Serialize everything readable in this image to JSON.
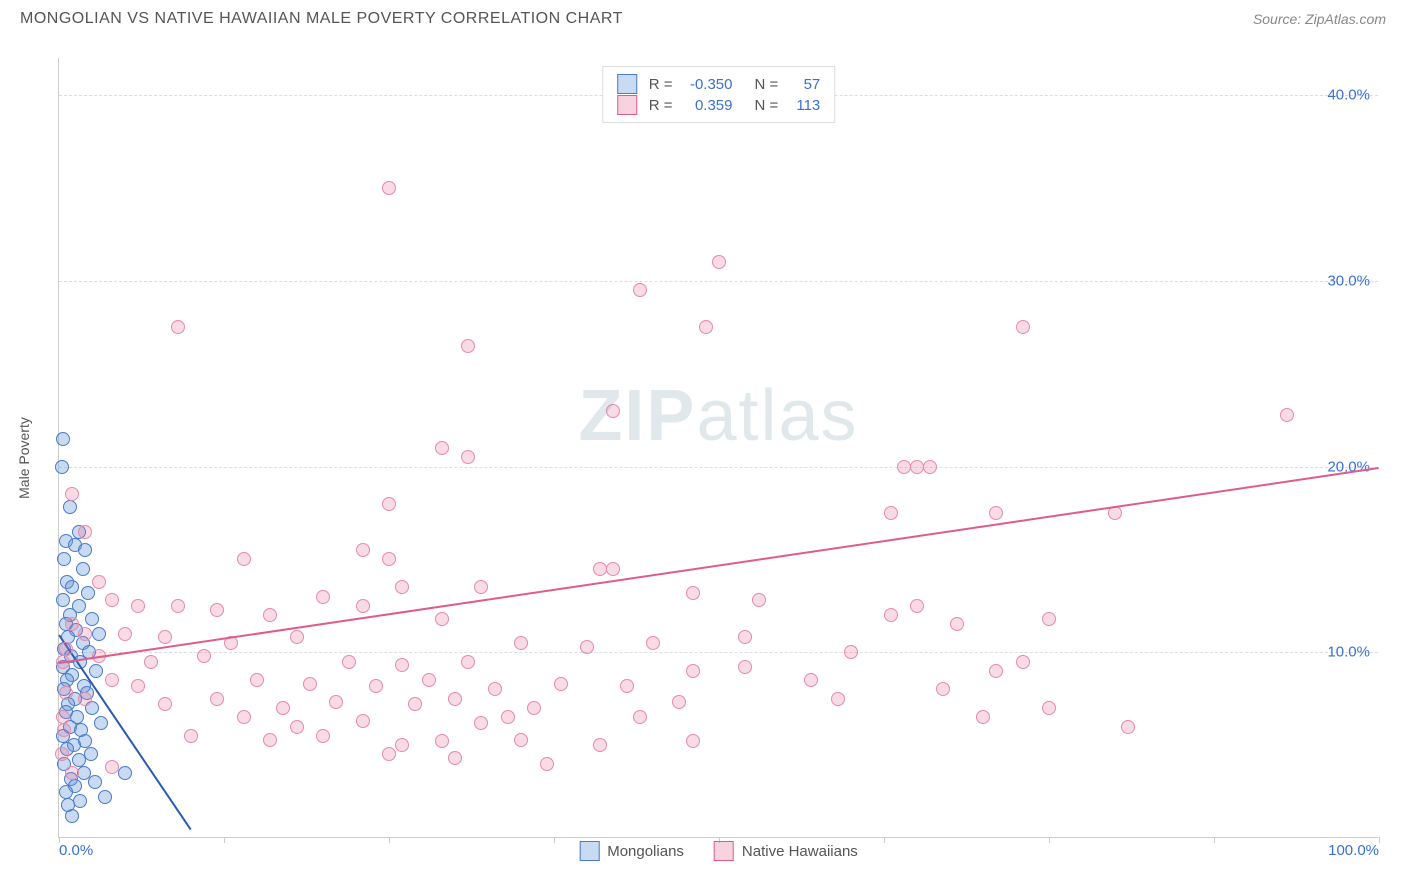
{
  "header": {
    "title": "MONGOLIAN VS NATIVE HAWAIIAN MALE POVERTY CORRELATION CHART",
    "source": "Source: ZipAtlas.com"
  },
  "y_axis_label": "Male Poverty",
  "watermark": "ZIPatlas",
  "legend_top": {
    "series1": {
      "r_label": "R =",
      "r_value": "-0.350",
      "n_label": "N =",
      "n_value": "57",
      "swatch_fill": "rgba(100,150,220,0.35)",
      "swatch_border": "#4a7bc8"
    },
    "series2": {
      "r_label": "R =",
      "r_value": "0.359",
      "n_label": "N =",
      "n_value": "113",
      "swatch_fill": "rgba(230,110,150,0.3)",
      "swatch_border": "#e05b8a"
    }
  },
  "legend_bottom": {
    "series1": {
      "label": "Mongolians",
      "swatch_fill": "rgba(100,150,220,0.35)",
      "swatch_border": "#4a7bc8"
    },
    "series2": {
      "label": "Native Hawaiians",
      "swatch_fill": "rgba(230,110,150,0.3)",
      "swatch_border": "#e05b8a"
    }
  },
  "chart": {
    "type": "scatter",
    "xlim": [
      0,
      100
    ],
    "ylim": [
      0,
      42
    ],
    "y_ticks": [
      10,
      20,
      30,
      40
    ],
    "y_tick_labels": [
      "10.0%",
      "20.0%",
      "30.0%",
      "40.0%"
    ],
    "x_ticks": [
      0,
      12.5,
      25,
      37.5,
      50,
      62.5,
      75,
      87.5,
      100
    ],
    "x_tick_labels_shown": {
      "0": "0.0%",
      "100": "100.0%"
    },
    "background_color": "#ffffff",
    "grid_color": "#dddddd",
    "point_radius": 7,
    "series": [
      {
        "name": "Mongolians",
        "fill": "rgba(100,150,220,0.35)",
        "stroke": "#4a7bc8",
        "trend": {
          "x1": 0,
          "y1": 11.0,
          "x2": 10,
          "y2": 0.5,
          "color": "#2a5bb0"
        },
        "points": [
          [
            0.3,
            21.5
          ],
          [
            0.2,
            20.0
          ],
          [
            0.8,
            17.8
          ],
          [
            1.5,
            16.5
          ],
          [
            0.5,
            16.0
          ],
          [
            1.2,
            15.8
          ],
          [
            2.0,
            15.5
          ],
          [
            0.4,
            15.0
          ],
          [
            1.8,
            14.5
          ],
          [
            0.6,
            13.8
          ],
          [
            1.0,
            13.5
          ],
          [
            2.2,
            13.2
          ],
          [
            0.3,
            12.8
          ],
          [
            1.5,
            12.5
          ],
          [
            0.8,
            12.0
          ],
          [
            2.5,
            11.8
          ],
          [
            0.5,
            11.5
          ],
          [
            1.3,
            11.2
          ],
          [
            3.0,
            11.0
          ],
          [
            0.7,
            10.8
          ],
          [
            1.8,
            10.5
          ],
          [
            0.4,
            10.2
          ],
          [
            2.3,
            10.0
          ],
          [
            0.9,
            9.8
          ],
          [
            1.6,
            9.5
          ],
          [
            0.3,
            9.2
          ],
          [
            2.8,
            9.0
          ],
          [
            1.0,
            8.8
          ],
          [
            0.6,
            8.5
          ],
          [
            1.9,
            8.2
          ],
          [
            0.4,
            8.0
          ],
          [
            2.1,
            7.8
          ],
          [
            1.2,
            7.5
          ],
          [
            0.7,
            7.2
          ],
          [
            2.5,
            7.0
          ],
          [
            0.5,
            6.8
          ],
          [
            1.4,
            6.5
          ],
          [
            3.2,
            6.2
          ],
          [
            0.8,
            6.0
          ],
          [
            1.7,
            5.8
          ],
          [
            0.3,
            5.5
          ],
          [
            2.0,
            5.2
          ],
          [
            1.1,
            5.0
          ],
          [
            0.6,
            4.8
          ],
          [
            2.4,
            4.5
          ],
          [
            1.5,
            4.2
          ],
          [
            0.4,
            4.0
          ],
          [
            1.9,
            3.5
          ],
          [
            0.9,
            3.2
          ],
          [
            2.7,
            3.0
          ],
          [
            1.2,
            2.8
          ],
          [
            0.5,
            2.5
          ],
          [
            3.5,
            2.2
          ],
          [
            1.6,
            2.0
          ],
          [
            5.0,
            3.5
          ],
          [
            1.0,
            1.2
          ],
          [
            0.7,
            1.8
          ]
        ]
      },
      {
        "name": "Native Hawaiians",
        "fill": "rgba(230,110,150,0.25)",
        "stroke": "#e88aa8",
        "trend": {
          "x1": 0,
          "y1": 9.5,
          "x2": 100,
          "y2": 20.0,
          "color": "#e05b8a"
        },
        "points": [
          [
            25,
            35.0
          ],
          [
            50,
            31.0
          ],
          [
            44,
            29.5
          ],
          [
            9,
            27.5
          ],
          [
            49,
            27.5
          ],
          [
            73,
            27.5
          ],
          [
            31,
            26.5
          ],
          [
            42,
            23.0
          ],
          [
            93,
            22.8
          ],
          [
            29,
            21.0
          ],
          [
            31,
            20.5
          ],
          [
            64,
            20.0
          ],
          [
            65,
            20.0
          ],
          [
            66,
            20.0
          ],
          [
            1,
            18.5
          ],
          [
            25,
            18.0
          ],
          [
            63,
            17.5
          ],
          [
            71,
            17.5
          ],
          [
            80,
            17.5
          ],
          [
            2,
            16.5
          ],
          [
            23,
            15.5
          ],
          [
            14,
            15.0
          ],
          [
            25,
            15.0
          ],
          [
            41,
            14.5
          ],
          [
            42,
            14.5
          ],
          [
            3,
            13.8
          ],
          [
            26,
            13.5
          ],
          [
            32,
            13.5
          ],
          [
            48,
            13.2
          ],
          [
            53,
            12.8
          ],
          [
            65,
            12.5
          ],
          [
            4,
            12.8
          ],
          [
            6,
            12.5
          ],
          [
            9,
            12.5
          ],
          [
            12,
            12.3
          ],
          [
            16,
            12.0
          ],
          [
            20,
            13.0
          ],
          [
            23,
            12.5
          ],
          [
            1,
            11.5
          ],
          [
            29,
            11.8
          ],
          [
            63,
            12.0
          ],
          [
            68,
            11.5
          ],
          [
            75,
            11.8
          ],
          [
            2,
            11.0
          ],
          [
            5,
            11.0
          ],
          [
            8,
            10.8
          ],
          [
            13,
            10.5
          ],
          [
            18,
            10.8
          ],
          [
            35,
            10.5
          ],
          [
            40,
            10.3
          ],
          [
            45,
            10.5
          ],
          [
            0.5,
            10.2
          ],
          [
            3,
            9.8
          ],
          [
            7,
            9.5
          ],
          [
            11,
            9.8
          ],
          [
            22,
            9.5
          ],
          [
            26,
            9.3
          ],
          [
            31,
            9.5
          ],
          [
            48,
            9.0
          ],
          [
            52,
            9.2
          ],
          [
            71,
            9.0
          ],
          [
            0.3,
            9.5
          ],
          [
            4,
            8.5
          ],
          [
            6,
            8.2
          ],
          [
            15,
            8.5
          ],
          [
            19,
            8.3
          ],
          [
            24,
            8.2
          ],
          [
            28,
            8.5
          ],
          [
            33,
            8.0
          ],
          [
            38,
            8.3
          ],
          [
            43,
            8.2
          ],
          [
            2,
            7.5
          ],
          [
            8,
            7.2
          ],
          [
            12,
            7.5
          ],
          [
            17,
            7.0
          ],
          [
            21,
            7.3
          ],
          [
            27,
            7.2
          ],
          [
            30,
            7.5
          ],
          [
            36,
            7.0
          ],
          [
            47,
            7.3
          ],
          [
            59,
            7.5
          ],
          [
            75,
            7.0
          ],
          [
            14,
            6.5
          ],
          [
            18,
            6.0
          ],
          [
            23,
            6.3
          ],
          [
            32,
            6.2
          ],
          [
            34,
            6.5
          ],
          [
            44,
            6.5
          ],
          [
            81,
            6.0
          ],
          [
            10,
            5.5
          ],
          [
            16,
            5.3
          ],
          [
            20,
            5.5
          ],
          [
            26,
            5.0
          ],
          [
            29,
            5.2
          ],
          [
            35,
            5.3
          ],
          [
            41,
            5.0
          ],
          [
            48,
            5.2
          ],
          [
            25,
            4.5
          ],
          [
            30,
            4.3
          ],
          [
            37,
            4.0
          ],
          [
            1,
            3.5
          ],
          [
            4,
            3.8
          ],
          [
            0.2,
            4.5
          ],
          [
            0.4,
            5.8
          ],
          [
            0.3,
            6.5
          ],
          [
            0.5,
            7.8
          ],
          [
            52,
            10.8
          ],
          [
            57,
            8.5
          ],
          [
            60,
            10.0
          ],
          [
            67,
            8.0
          ],
          [
            70,
            6.5
          ],
          [
            73,
            9.5
          ]
        ]
      }
    ]
  }
}
